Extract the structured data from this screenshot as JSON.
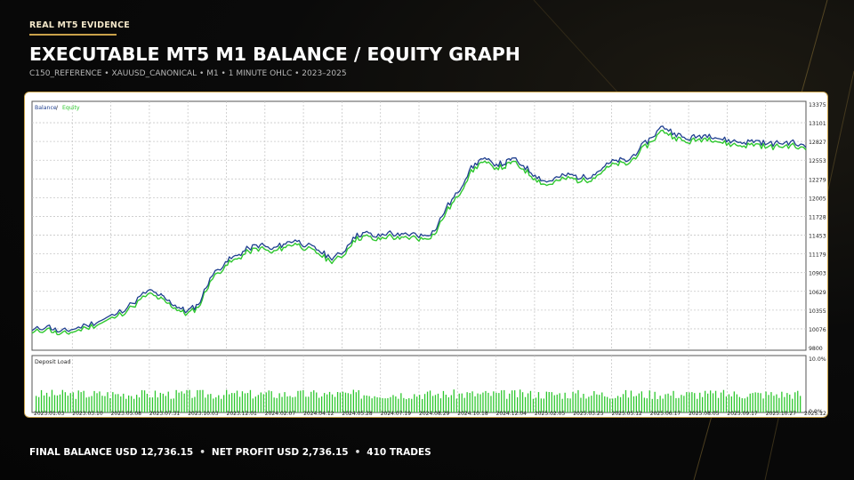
{
  "header": {
    "badge": "REAL MT5 EVIDENCE",
    "title": "EXECUTABLE MT5 M1 BALANCE / EQUITY GRAPH",
    "subtitle": "C150_REFERENCE • XAUUSD_CANONICAL • M1 • 1 MINUTE OHLC • 2023–2025"
  },
  "footer": {
    "final_balance": "FINAL BALANCE USD 12,736.15",
    "net_profit": "NET PROFIT USD 2,736.15",
    "trades": "410 TRADES",
    "separator": "•"
  },
  "colors": {
    "accent_gold": "#c9a24a",
    "balance": "#1f3f8f",
    "equity": "#2ec82e",
    "deposit_load": "#2ec82e",
    "grid": "#c8c8c8"
  },
  "chart_data": [
    {
      "type": "line",
      "legend": {
        "balance_label": "Balance",
        "separator": " / ",
        "equity_label": "Equity",
        "position": "top-left"
      },
      "y_ticks": [
        "13375",
        "13101",
        "12827",
        "12553",
        "12279",
        "12005",
        "11728",
        "11453",
        "11179",
        "10903",
        "10629",
        "10355",
        "10076",
        "9800"
      ],
      "x_ticks": [
        "2023.01.03",
        "2023.03.10",
        "2023.05.08",
        "2023.07.31",
        "2023.10.03",
        "2023.12.01",
        "2024.02.07",
        "2024.04.12",
        "2024.05.28",
        "2024.07.19",
        "2024.08.29",
        "2024.10.18",
        "2024.12.04",
        "2025.02.05",
        "2025.03.25",
        "2025.05.12",
        "2025.06.17",
        "2025.08.05",
        "2025.09.17",
        "2025.10.27",
        "2025.12.05"
      ],
      "ylim": [
        9800,
        13375
      ],
      "grid": true,
      "series": [
        {
          "name": "Balance",
          "x": [
            0,
            0.02,
            0.035,
            0.05,
            0.07,
            0.09,
            0.11,
            0.13,
            0.15,
            0.165,
            0.175,
            0.19,
            0.2,
            0.215,
            0.23,
            0.25,
            0.265,
            0.28,
            0.295,
            0.31,
            0.325,
            0.34,
            0.355,
            0.37,
            0.385,
            0.4,
            0.415,
            0.43,
            0.445,
            0.46,
            0.475,
            0.49,
            0.505,
            0.52,
            0.535,
            0.55,
            0.565,
            0.58,
            0.595,
            0.61,
            0.62,
            0.635,
            0.65,
            0.665,
            0.68,
            0.695,
            0.71,
            0.725,
            0.74,
            0.755,
            0.77,
            0.785,
            0.8,
            0.815,
            0.83,
            0.845,
            0.86,
            0.875,
            0.89,
            0.905,
            0.92,
            0.935,
            0.95,
            0.965,
            0.98,
            1.0
          ],
          "y": [
            10050,
            10120,
            10030,
            10060,
            10130,
            10200,
            10300,
            10450,
            10640,
            10570,
            10490,
            10390,
            10330,
            10430,
            10820,
            11060,
            11150,
            11260,
            11310,
            11240,
            11320,
            11380,
            11300,
            11230,
            11120,
            11170,
            11420,
            11490,
            11420,
            11490,
            11440,
            11470,
            11440,
            11510,
            11850,
            12070,
            12400,
            12570,
            12510,
            12490,
            12580,
            12470,
            12330,
            12230,
            12300,
            12340,
            12290,
            12340,
            12460,
            12550,
            12540,
            12720,
            12880,
            13050,
            12950,
            12860,
            12900,
            12930,
            12860,
            12830,
            12810,
            12840,
            12790,
            12800,
            12820,
            12736
          ]
        },
        {
          "name": "Equity",
          "x": [
            0,
            0.02,
            0.035,
            0.05,
            0.07,
            0.09,
            0.11,
            0.13,
            0.15,
            0.165,
            0.175,
            0.19,
            0.2,
            0.215,
            0.23,
            0.25,
            0.265,
            0.28,
            0.295,
            0.31,
            0.325,
            0.34,
            0.355,
            0.37,
            0.385,
            0.4,
            0.415,
            0.43,
            0.445,
            0.46,
            0.475,
            0.49,
            0.505,
            0.52,
            0.535,
            0.55,
            0.565,
            0.58,
            0.595,
            0.61,
            0.62,
            0.635,
            0.65,
            0.665,
            0.68,
            0.695,
            0.71,
            0.725,
            0.74,
            0.755,
            0.77,
            0.785,
            0.8,
            0.815,
            0.83,
            0.845,
            0.86,
            0.875,
            0.89,
            0.905,
            0.92,
            0.935,
            0.95,
            0.965,
            0.98,
            1.0
          ],
          "y": [
            10010,
            10080,
            9990,
            10020,
            10090,
            10160,
            10260,
            10400,
            10590,
            10520,
            10450,
            10350,
            10290,
            10390,
            10770,
            11010,
            11100,
            11210,
            11260,
            11190,
            11270,
            11330,
            11250,
            11180,
            11070,
            11120,
            11370,
            11440,
            11370,
            11440,
            11390,
            11420,
            11390,
            11460,
            11790,
            12010,
            12340,
            12520,
            12460,
            12440,
            12530,
            12420,
            12280,
            12180,
            12250,
            12290,
            12240,
            12290,
            12410,
            12500,
            12490,
            12670,
            12820,
            12990,
            12890,
            12810,
            12850,
            12880,
            12810,
            12780,
            12760,
            12790,
            12740,
            12750,
            12770,
            12700
          ]
        }
      ]
    },
    {
      "type": "bar",
      "title": "Deposit Load",
      "y_ticks": [
        "10.0%",
        "0.0%"
      ],
      "ylim": [
        0,
        10
      ],
      "bars_count": 290,
      "typical_value_range": [
        2.5,
        4.3
      ]
    }
  ]
}
